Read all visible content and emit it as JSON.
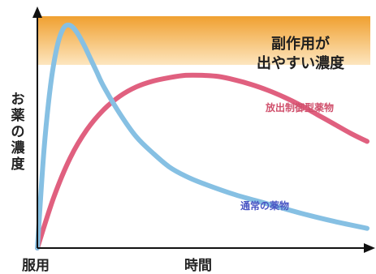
{
  "chart_data": {
    "type": "line",
    "title": "",
    "xlabel": "時間",
    "ylabel": "お薬の濃度",
    "x_origin_label": "服用",
    "xlim": [
      0,
      10
    ],
    "ylim": [
      0,
      10
    ],
    "grid": false,
    "band": {
      "label_line1": "副作用が",
      "label_line2": "出やすい濃度",
      "y_from": 7.9,
      "y_to": 10,
      "color_top": "#f0a030",
      "color_bottom": "#fde6bf"
    },
    "series": [
      {
        "name": "放出制御型薬物",
        "color": "#e0607f",
        "x": [
          0,
          0.5,
          1.0,
          1.5,
          2.0,
          2.5,
          3.0,
          3.5,
          4.0,
          4.5,
          5.0,
          5.5,
          6.0,
          6.5,
          7.0,
          7.5,
          8.0,
          8.5,
          9.0,
          9.5,
          10
        ],
        "y": [
          0,
          2.2,
          3.9,
          5.1,
          5.95,
          6.55,
          6.95,
          7.2,
          7.35,
          7.45,
          7.45,
          7.4,
          7.25,
          7.05,
          6.8,
          6.5,
          6.15,
          5.75,
          5.35,
          4.95,
          4.6
        ]
      },
      {
        "name": "通常の薬物",
        "color": "#86c0e3",
        "x": [
          0,
          0.2,
          0.4,
          0.6,
          0.8,
          1.0,
          1.2,
          1.4,
          1.6,
          1.8,
          2.0,
          2.5,
          3.0,
          3.5,
          4.0,
          4.5,
          5.0,
          6.0,
          7.0,
          8.0,
          9.0,
          10
        ],
        "y": [
          0,
          4.2,
          7.0,
          8.7,
          9.5,
          9.6,
          9.3,
          8.8,
          8.2,
          7.6,
          7.0,
          5.8,
          4.8,
          4.1,
          3.5,
          3.1,
          2.8,
          2.3,
          1.9,
          1.5,
          1.15,
          0.85
        ]
      }
    ],
    "series_label_colors": {
      "controlled": "#d0506c",
      "normal": "#4a56c4"
    }
  }
}
